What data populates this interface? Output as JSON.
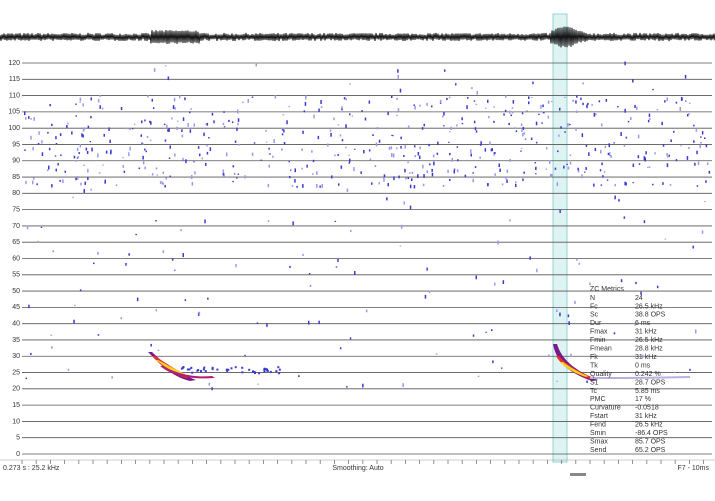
{
  "spectrogram": {
    "y_axis": {
      "range": [
        0,
        120
      ],
      "ticks": [
        0,
        5,
        10,
        15,
        20,
        25,
        30,
        35,
        40,
        45,
        50,
        55,
        60,
        65,
        70,
        75,
        80,
        85,
        90,
        95,
        100,
        105,
        110,
        115,
        120
      ]
    },
    "status": {
      "left": "0.273 s : 25.2 kHz",
      "center": "Smoothing: Auto",
      "right": "F7 - 10ms"
    },
    "metrics": {
      "title": "ZC Metrics",
      "rows": [
        [
          "N",
          "24"
        ],
        [
          "Fc",
          "26.5 kHz"
        ],
        [
          "Sc",
          "38.8 OPS"
        ],
        [
          "Dur",
          "6 ms"
        ],
        [
          "Fmax",
          "31 kHz"
        ],
        [
          "Fmin",
          "26.5 kHz"
        ],
        [
          "Fmean",
          "28.8 kHz"
        ],
        [
          "Fk",
          "31 kHz"
        ],
        [
          "Tk",
          "0 ms"
        ],
        [
          "Quality",
          "0.242 %"
        ],
        [
          "S1",
          "28.7 OPS"
        ],
        [
          "Tc",
          "5.85 ms"
        ],
        [
          "PMC",
          "17 %"
        ],
        [
          "Curvature",
          "-0.0518"
        ],
        [
          "Fstart",
          "31 kHz"
        ],
        [
          "Fend",
          "26.5 kHz"
        ],
        [
          "Smin",
          "-86.4 OPS"
        ],
        [
          "Smax",
          "85.7 OPS"
        ],
        [
          "Send",
          "65.2 OPS"
        ]
      ]
    }
  }
}
